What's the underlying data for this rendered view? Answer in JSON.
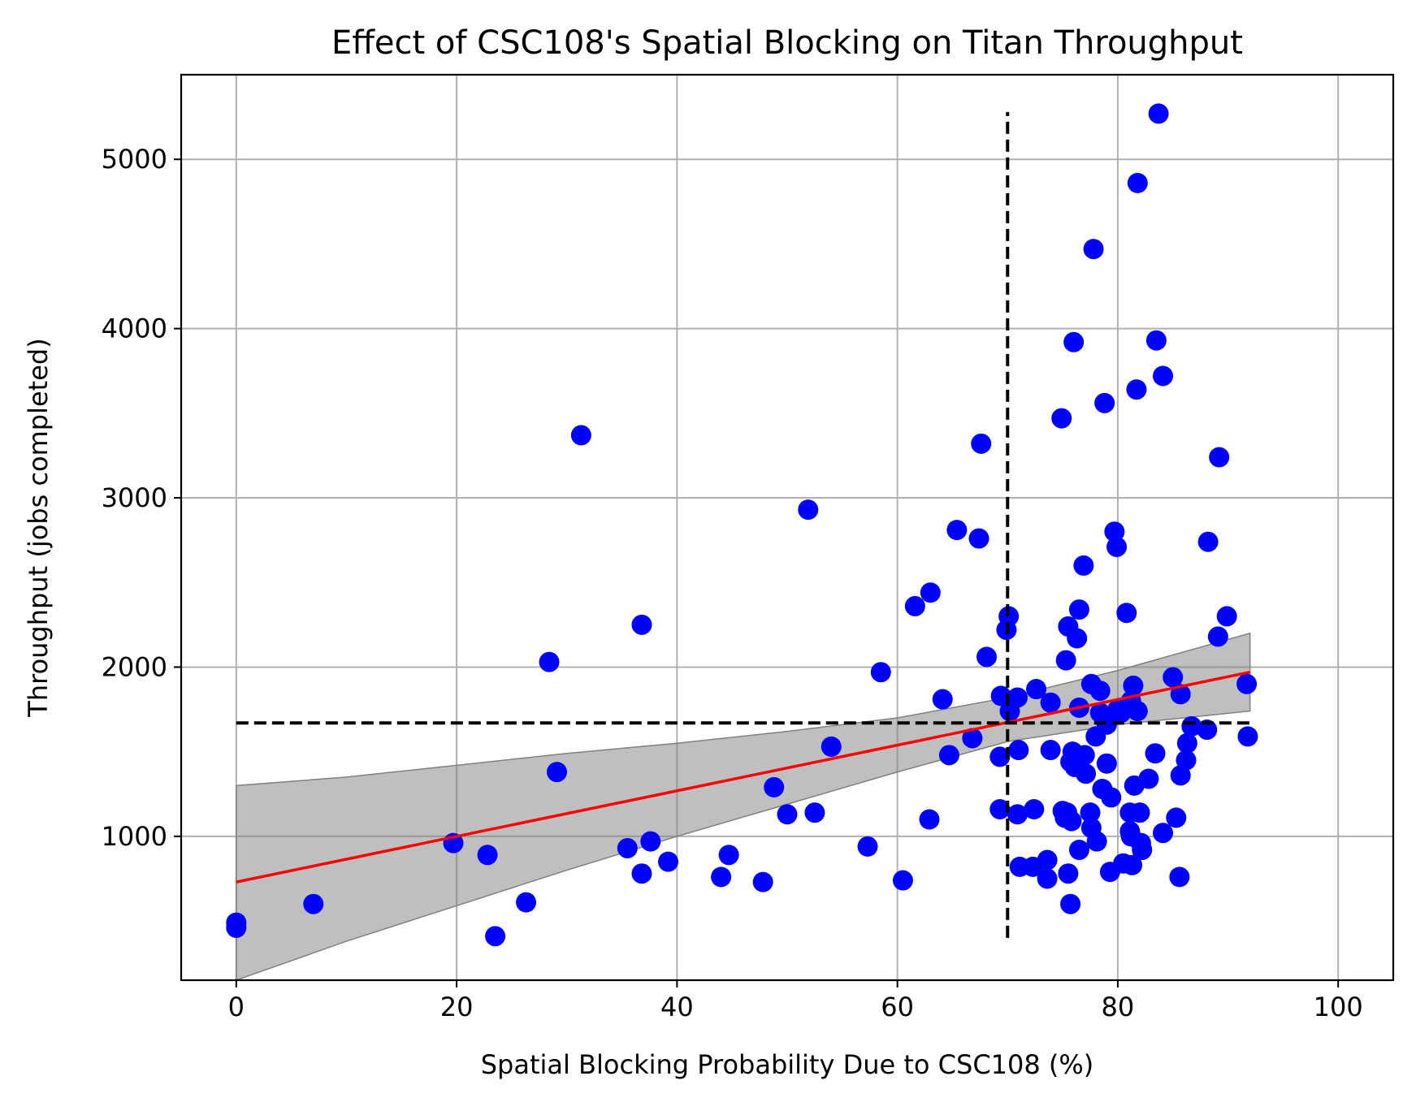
{
  "chart_data": {
    "type": "scatter",
    "title": "Effect of CSC108's Spatial Blocking on Titan Throughput",
    "xlabel": "Spatial Blocking Probability Due to CSC108 (%)",
    "ylabel": "Throughput (jobs completed)",
    "xlim": [
      -5,
      105
    ],
    "ylim": [
      150,
      5500
    ],
    "xticks": [
      0,
      20,
      40,
      60,
      80,
      100
    ],
    "yticks": [
      1000,
      2000,
      3000,
      4000,
      5000
    ],
    "grid": true,
    "colors": {
      "points": "#0000ff",
      "fit_line": "#ff0000",
      "band": "#808080",
      "reference_lines": "#000000"
    },
    "series": [
      {
        "points": [
          [
            0,
            490
          ],
          [
            0,
            460
          ],
          [
            7,
            600
          ],
          [
            19.7,
            960
          ],
          [
            22.8,
            890
          ],
          [
            23.5,
            410
          ],
          [
            26.3,
            610
          ],
          [
            28.4,
            2030
          ],
          [
            29.1,
            1380
          ],
          [
            31.3,
            3370
          ],
          [
            35.5,
            930
          ],
          [
            36.8,
            2250
          ],
          [
            36.8,
            780
          ],
          [
            37.6,
            970
          ],
          [
            39.2,
            850
          ],
          [
            44,
            760
          ],
          [
            44.7,
            890
          ],
          [
            47.8,
            730
          ],
          [
            48.8,
            1290
          ],
          [
            50,
            1130
          ],
          [
            51.9,
            2930
          ],
          [
            52.5,
            1140
          ],
          [
            54,
            1530
          ],
          [
            57.3,
            940
          ],
          [
            58.5,
            1970
          ],
          [
            60.5,
            740
          ],
          [
            61.6,
            2360
          ],
          [
            62.9,
            1100
          ],
          [
            63,
            2440
          ],
          [
            64.1,
            1810
          ],
          [
            64.7,
            1480
          ],
          [
            65.4,
            2810
          ],
          [
            66.8,
            1580
          ],
          [
            67.4,
            2760
          ],
          [
            67.6,
            3320
          ],
          [
            68.1,
            2060
          ],
          [
            69.3,
            1470
          ],
          [
            69.3,
            1160
          ],
          [
            69.4,
            1830
          ],
          [
            69.9,
            2220
          ],
          [
            70.1,
            2300
          ],
          [
            70.2,
            1740
          ],
          [
            70.9,
            1820
          ],
          [
            70.9,
            1130
          ],
          [
            71,
            1510
          ],
          [
            71.1,
            820
          ],
          [
            72.3,
            820
          ],
          [
            72.4,
            1160
          ],
          [
            72.6,
            1870
          ],
          [
            73.6,
            860
          ],
          [
            73.6,
            750
          ],
          [
            73.9,
            1510
          ],
          [
            73.9,
            1790
          ],
          [
            74.9,
            3470
          ],
          [
            75,
            1150
          ],
          [
            75.2,
            1110
          ],
          [
            75.3,
            2040
          ],
          [
            75.4,
            1140
          ],
          [
            75.5,
            2240
          ],
          [
            75.5,
            780
          ],
          [
            75.7,
            1440
          ],
          [
            75.7,
            600
          ],
          [
            75.8,
            1090
          ],
          [
            75.9,
            1500
          ],
          [
            76,
            3920
          ],
          [
            76.1,
            1410
          ],
          [
            76.3,
            2170
          ],
          [
            76.5,
            920
          ],
          [
            76.5,
            1760
          ],
          [
            76.5,
            2340
          ],
          [
            76.9,
            2600
          ],
          [
            77,
            1480
          ],
          [
            77.1,
            1370
          ],
          [
            77.5,
            1140
          ],
          [
            77.6,
            1050
          ],
          [
            77.6,
            1900
          ],
          [
            77.8,
            4470
          ],
          [
            78,
            1590
          ],
          [
            78.1,
            970
          ],
          [
            78.4,
            1730
          ],
          [
            78.4,
            1860
          ],
          [
            78.6,
            1280
          ],
          [
            78.8,
            3560
          ],
          [
            79,
            1430
          ],
          [
            79,
            1660
          ],
          [
            79.3,
            790
          ],
          [
            79.4,
            1230
          ],
          [
            79.7,
            2800
          ],
          [
            79.9,
            2710
          ],
          [
            80,
            1750
          ],
          [
            80.3,
            1730
          ],
          [
            80.5,
            840
          ],
          [
            80.8,
            2320
          ],
          [
            81,
            1760
          ],
          [
            81.1,
            1030
          ],
          [
            81.1,
            1140
          ],
          [
            81.2,
            1800
          ],
          [
            81.2,
            1000
          ],
          [
            81.3,
            830
          ],
          [
            81.4,
            1890
          ],
          [
            81.5,
            1300
          ],
          [
            81.7,
            3640
          ],
          [
            81.8,
            1740
          ],
          [
            81.8,
            4860
          ],
          [
            82,
            1140
          ],
          [
            82.1,
            960
          ],
          [
            82.2,
            920
          ],
          [
            82.8,
            1340
          ],
          [
            83.4,
            1490
          ],
          [
            83.5,
            3930
          ],
          [
            83.7,
            5270
          ],
          [
            84.1,
            3720
          ],
          [
            84.1,
            1020
          ],
          [
            85,
            1940
          ],
          [
            85.3,
            1110
          ],
          [
            85.6,
            760
          ],
          [
            85.7,
            1360
          ],
          [
            85.7,
            1840
          ],
          [
            86.2,
            1450
          ],
          [
            86.3,
            1550
          ],
          [
            86.7,
            1650
          ],
          [
            88.1,
            1630
          ],
          [
            88.2,
            2740
          ],
          [
            89.1,
            2180
          ],
          [
            89.2,
            3240
          ],
          [
            89.9,
            2300
          ],
          [
            91.7,
            1900
          ],
          [
            91.8,
            1590
          ]
        ]
      }
    ],
    "fit_line": {
      "x": [
        0,
        92
      ],
      "y": [
        730,
        1970
      ]
    },
    "confidence_band": {
      "x": [
        0,
        10,
        20,
        30,
        40,
        50,
        60,
        70,
        80,
        92
      ],
      "upper": [
        1300,
        1350,
        1420,
        1490,
        1550,
        1620,
        1700,
        1820,
        1980,
        2200
      ],
      "lower": [
        150,
        380,
        590,
        800,
        1000,
        1190,
        1380,
        1560,
        1660,
        1740
      ]
    },
    "reference_lines": {
      "vertical": {
        "x": 70,
        "y_range": [
          400,
          5280
        ]
      },
      "horizontal": {
        "y": 1670,
        "x_range": [
          0,
          92
        ]
      }
    }
  }
}
